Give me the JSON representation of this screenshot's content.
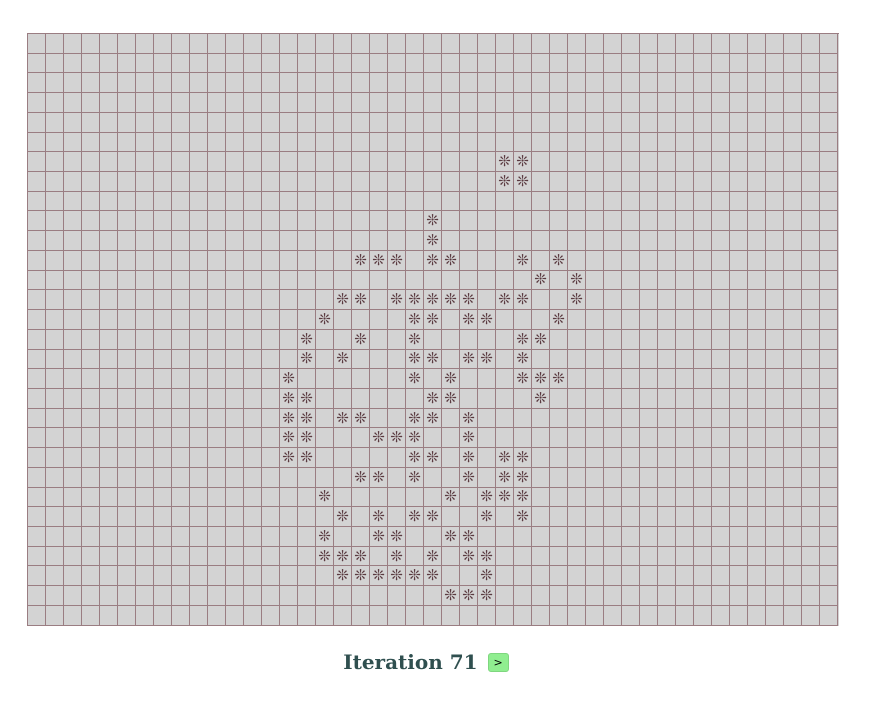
{
  "grid": {
    "cols": 45,
    "rows": 30,
    "cell_glyph": "❊",
    "live_cells": [
      [
        6,
        26
      ],
      [
        6,
        27
      ],
      [
        7,
        26
      ],
      [
        7,
        27
      ],
      [
        9,
        22
      ],
      [
        10,
        22
      ],
      [
        11,
        18
      ],
      [
        11,
        19
      ],
      [
        11,
        20
      ],
      [
        11,
        22
      ],
      [
        11,
        23
      ],
      [
        11,
        27
      ],
      [
        11,
        29
      ],
      [
        12,
        28
      ],
      [
        12,
        30
      ],
      [
        13,
        17
      ],
      [
        13,
        18
      ],
      [
        13,
        20
      ],
      [
        13,
        21
      ],
      [
        13,
        22
      ],
      [
        13,
        23
      ],
      [
        13,
        24
      ],
      [
        13,
        26
      ],
      [
        13,
        27
      ],
      [
        13,
        30
      ],
      [
        14,
        16
      ],
      [
        14,
        21
      ],
      [
        14,
        22
      ],
      [
        14,
        24
      ],
      [
        14,
        25
      ],
      [
        14,
        29
      ],
      [
        15,
        15
      ],
      [
        15,
        18
      ],
      [
        15,
        21
      ],
      [
        15,
        27
      ],
      [
        15,
        28
      ],
      [
        16,
        15
      ],
      [
        16,
        17
      ],
      [
        16,
        21
      ],
      [
        16,
        22
      ],
      [
        16,
        24
      ],
      [
        16,
        25
      ],
      [
        16,
        27
      ],
      [
        17,
        14
      ],
      [
        17,
        21
      ],
      [
        17,
        23
      ],
      [
        17,
        27
      ],
      [
        17,
        28
      ],
      [
        17,
        29
      ],
      [
        18,
        14
      ],
      [
        18,
        15
      ],
      [
        18,
        22
      ],
      [
        18,
        23
      ],
      [
        18,
        28
      ],
      [
        19,
        14
      ],
      [
        19,
        15
      ],
      [
        19,
        17
      ],
      [
        19,
        18
      ],
      [
        19,
        21
      ],
      [
        19,
        22
      ],
      [
        19,
        24
      ],
      [
        20,
        14
      ],
      [
        20,
        15
      ],
      [
        20,
        19
      ],
      [
        20,
        20
      ],
      [
        20,
        21
      ],
      [
        20,
        24
      ],
      [
        21,
        14
      ],
      [
        21,
        15
      ],
      [
        21,
        21
      ],
      [
        21,
        22
      ],
      [
        21,
        24
      ],
      [
        21,
        26
      ],
      [
        21,
        27
      ],
      [
        22,
        18
      ],
      [
        22,
        19
      ],
      [
        22,
        21
      ],
      [
        22,
        24
      ],
      [
        22,
        26
      ],
      [
        22,
        27
      ],
      [
        23,
        16
      ],
      [
        23,
        23
      ],
      [
        23,
        25
      ],
      [
        23,
        26
      ],
      [
        23,
        27
      ],
      [
        24,
        17
      ],
      [
        24,
        19
      ],
      [
        24,
        21
      ],
      [
        24,
        22
      ],
      [
        24,
        25
      ],
      [
        24,
        27
      ],
      [
        25,
        16
      ],
      [
        25,
        19
      ],
      [
        25,
        20
      ],
      [
        25,
        23
      ],
      [
        25,
        24
      ],
      [
        26,
        16
      ],
      [
        26,
        17
      ],
      [
        26,
        18
      ],
      [
        26,
        20
      ],
      [
        26,
        22
      ],
      [
        26,
        24
      ],
      [
        26,
        25
      ],
      [
        27,
        17
      ],
      [
        27,
        18
      ],
      [
        27,
        19
      ],
      [
        27,
        20
      ],
      [
        27,
        21
      ],
      [
        27,
        22
      ],
      [
        27,
        25
      ],
      [
        28,
        23
      ],
      [
        28,
        24
      ],
      [
        28,
        25
      ]
    ]
  },
  "footer": {
    "iteration_label": "Iteration 71",
    "next_label": ">"
  }
}
